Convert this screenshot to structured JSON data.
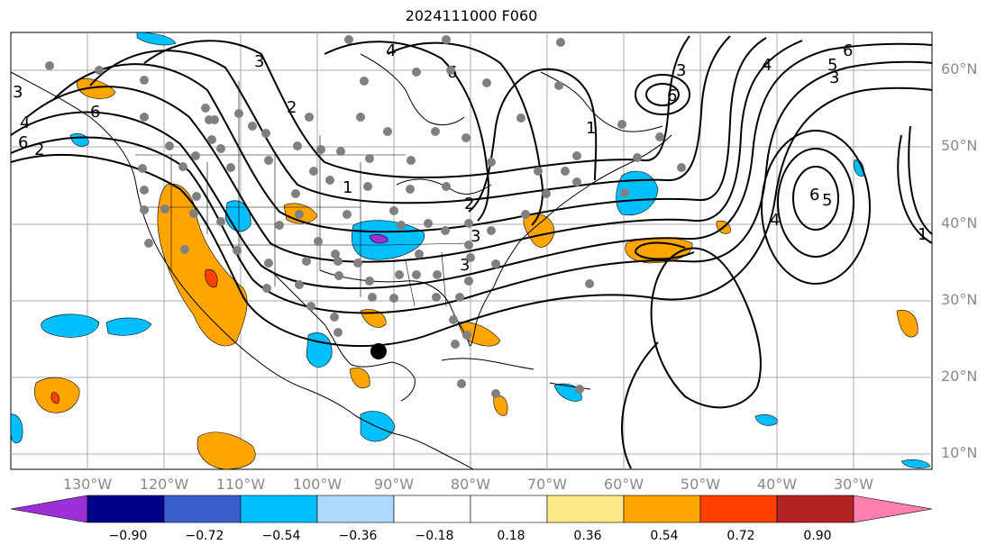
{
  "title": "2024111000 F060",
  "axes": {
    "lon_labels": [
      "130°W",
      "120°W",
      "110°W",
      "100°W",
      "90°W",
      "80°W",
      "70°W",
      "60°W",
      "50°W",
      "40°W",
      "30°W"
    ],
    "lat_labels": [
      "60°N",
      "50°N",
      "40°N",
      "30°N",
      "20°N",
      "10°N"
    ]
  },
  "colorbar": {
    "ticks": [
      "−0.90",
      "−0.72",
      "−0.54",
      "−0.36",
      "−0.18",
      "0.18",
      "0.36",
      "0.54",
      "0.72",
      "0.90"
    ],
    "colors": [
      "#9b30d9",
      "#00008b",
      "#3a5fcd",
      "#00bfff",
      "#add8ff",
      "#ffffff",
      "#ffe888",
      "#ffa500",
      "#ff4000",
      "#b22222",
      "#ff80b0"
    ]
  },
  "contour_labels": [
    "3",
    "3",
    "3",
    "2",
    "4",
    "4",
    "4",
    "6",
    "6",
    "6",
    "5",
    "6",
    "5",
    "6",
    "3",
    "3",
    "6",
    "4",
    "2",
    "1",
    "1",
    "3",
    "1",
    "2"
  ],
  "colors": {
    "contour": "#000000",
    "station": "#808080",
    "storm_center": "#000000",
    "grid": "#aaaaaa"
  }
}
